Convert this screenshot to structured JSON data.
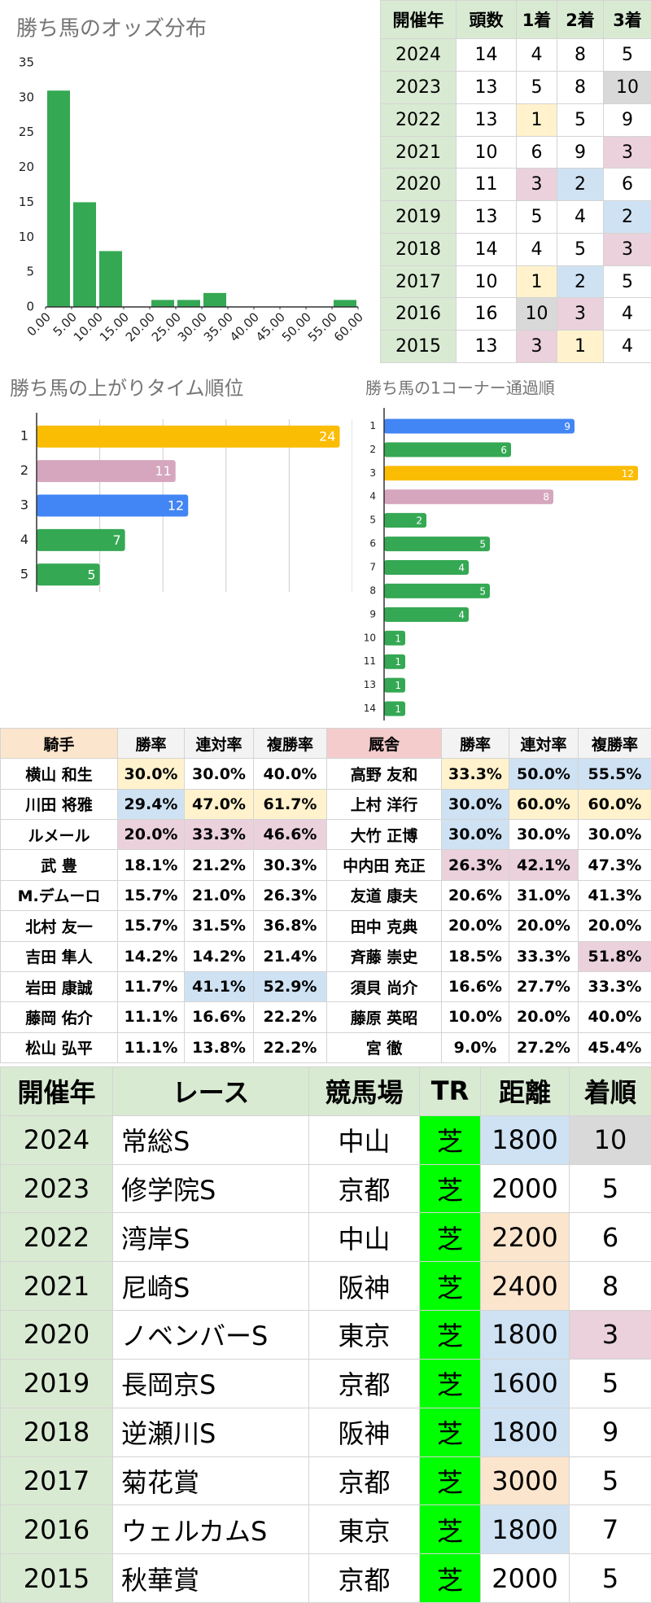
{
  "chart_data": [
    {
      "type": "histogram",
      "title": "勝ち馬のオッズ分布",
      "bins": [
        0,
        5,
        10,
        15,
        20,
        25,
        30,
        35,
        40,
        45,
        50,
        55,
        60
      ],
      "values": [
        31,
        15,
        8,
        0,
        1,
        1,
        2,
        0,
        0,
        0,
        0,
        1
      ],
      "color": "#34a853",
      "xlim": [
        0,
        60
      ],
      "xticks": [
        {
          "value": 0,
          "label": "0.00"
        },
        {
          "value": 5,
          "label": "5.00"
        },
        {
          "value": 10,
          "label": "10.00"
        },
        {
          "value": 15,
          "label": "15.00"
        },
        {
          "value": 20,
          "label": "20.00"
        },
        {
          "value": 25,
          "label": "25.00"
        },
        {
          "value": 30,
          "label": "30.00"
        },
        {
          "value": 35,
          "label": "35.00"
        },
        {
          "value": 40,
          "label": "40.00"
        },
        {
          "value": 45,
          "label": "45.00"
        },
        {
          "value": 50,
          "label": "50.00"
        },
        {
          "value": 55,
          "label": "55.00"
        },
        {
          "value": 60,
          "label": "60.00"
        }
      ],
      "ylim": [
        0,
        35
      ],
      "yticks": [
        0,
        5,
        10,
        15,
        20,
        25,
        30,
        35
      ]
    },
    {
      "type": "barh",
      "title": "勝ち馬の上がりタイム順位",
      "categories": [
        "1",
        "2",
        "3",
        "4",
        "5"
      ],
      "values": [
        24,
        11,
        12,
        7,
        5
      ],
      "colors": [
        "#fbbc04",
        "#d5a6bd",
        "#4285f4",
        "#34a853",
        "#34a853"
      ],
      "xlim": [
        0,
        25
      ],
      "xticks": [
        0,
        5,
        10,
        15,
        20,
        25
      ],
      "grid": true
    },
    {
      "type": "barh",
      "title": "勝ち馬の1コーナー通過順",
      "categories": [
        "1",
        "2",
        "3",
        "4",
        "5",
        "6",
        "7",
        "8",
        "9",
        "10",
        "11",
        "13",
        "14"
      ],
      "values": [
        9,
        6,
        12,
        8,
        2,
        5,
        4,
        5,
        4,
        1,
        1,
        1,
        1
      ],
      "colors": [
        "#4285f4",
        "#34a853",
        "#fbbc04",
        "#d5a6bd",
        "#34a853",
        "#34a853",
        "#34a853",
        "#34a853",
        "#34a853",
        "#34a853",
        "#34a853",
        "#34a853",
        "#34a853"
      ],
      "xlim": [
        0,
        12
      ],
      "grid": false
    }
  ],
  "results_table": {
    "header": [
      "開催年",
      "頭数",
      "1着",
      "2着",
      "3着"
    ],
    "rows": [
      [
        2024,
        14,
        4,
        8,
        5
      ],
      [
        2023,
        13,
        5,
        8,
        10
      ],
      [
        2022,
        13,
        1,
        5,
        9
      ],
      [
        2021,
        10,
        6,
        9,
        3
      ],
      [
        2020,
        11,
        3,
        2,
        6
      ],
      [
        2019,
        13,
        5,
        4,
        2
      ],
      [
        2018,
        14,
        4,
        5,
        3
      ],
      [
        2017,
        10,
        1,
        2,
        5
      ],
      [
        2016,
        16,
        10,
        3,
        4
      ],
      [
        2015,
        13,
        3,
        1,
        4
      ]
    ],
    "cell_colors": [
      [
        null,
        null,
        null,
        null,
        null
      ],
      [
        null,
        null,
        null,
        null,
        "#d9d9d9"
      ],
      [
        null,
        null,
        "#fff2cc",
        null,
        null
      ],
      [
        null,
        null,
        null,
        null,
        "#ead1dc"
      ],
      [
        null,
        null,
        "#ead1dc",
        "#cfe2f3",
        null
      ],
      [
        null,
        null,
        null,
        null,
        "#cfe2f3"
      ],
      [
        null,
        null,
        null,
        null,
        "#ead1dc"
      ],
      [
        null,
        null,
        "#fff2cc",
        "#cfe2f3",
        null
      ],
      [
        null,
        null,
        "#d9d9d9",
        "#ead1dc",
        null
      ],
      [
        null,
        null,
        "#ead1dc",
        "#fff2cc",
        null
      ]
    ]
  },
  "jockey_trainer_table": {
    "header": [
      "騎手",
      "勝率",
      "連対率",
      "複勝率",
      "厩舎",
      "勝率",
      "連対率",
      "複勝率"
    ],
    "rows": [
      [
        "横山 和生",
        "30.0%",
        "30.0%",
        "40.0%",
        "高野 友和",
        "33.3%",
        "50.0%",
        "55.5%"
      ],
      [
        "川田 将雅",
        "29.4%",
        "47.0%",
        "61.7%",
        "上村 洋行",
        "30.0%",
        "60.0%",
        "60.0%"
      ],
      [
        "ルメール",
        "20.0%",
        "33.3%",
        "46.6%",
        "大竹 正博",
        "30.0%",
        "30.0%",
        "30.0%"
      ],
      [
        "武 豊",
        "18.1%",
        "21.2%",
        "30.3%",
        "中内田 充正",
        "26.3%",
        "42.1%",
        "47.3%"
      ],
      [
        "M.デムーロ",
        "15.7%",
        "21.0%",
        "26.3%",
        "友道 康夫",
        "20.6%",
        "31.0%",
        "41.3%"
      ],
      [
        "北村 友一",
        "15.7%",
        "31.5%",
        "36.8%",
        "田中 克典",
        "20.0%",
        "20.0%",
        "20.0%"
      ],
      [
        "吉田 隼人",
        "14.2%",
        "14.2%",
        "21.4%",
        "斉藤 崇史",
        "18.5%",
        "33.3%",
        "51.8%"
      ],
      [
        "岩田 康誠",
        "11.7%",
        "41.1%",
        "52.9%",
        "須貝 尚介",
        "16.6%",
        "27.7%",
        "33.3%"
      ],
      [
        "藤岡 佑介",
        "11.1%",
        "16.6%",
        "22.2%",
        "藤原 英昭",
        "10.0%",
        "20.0%",
        "40.0%"
      ],
      [
        "松山 弘平",
        "11.1%",
        "13.8%",
        "22.2%",
        "宮 徹",
        "9.0%",
        "27.2%",
        "45.4%"
      ]
    ],
    "cell_colors": [
      [
        null,
        "#fff2cc",
        null,
        null,
        null,
        "#fff2cc",
        "#cfe2f3",
        "#cfe2f3"
      ],
      [
        null,
        "#cfe2f3",
        "#fff2cc",
        "#fff2cc",
        null,
        "#cfe2f3",
        "#fff2cc",
        "#fff2cc"
      ],
      [
        null,
        "#ead1dc",
        "#ead1dc",
        "#ead1dc",
        null,
        "#cfe2f3",
        null,
        null
      ],
      [
        null,
        null,
        null,
        null,
        null,
        "#ead1dc",
        "#ead1dc",
        null
      ],
      [
        null,
        null,
        null,
        null,
        null,
        null,
        null,
        null
      ],
      [
        null,
        null,
        null,
        null,
        null,
        null,
        null,
        null
      ],
      [
        null,
        null,
        null,
        null,
        null,
        null,
        null,
        "#ead1dc"
      ],
      [
        null,
        null,
        "#cfe2f3",
        "#cfe2f3",
        null,
        null,
        null,
        null
      ],
      [
        null,
        null,
        null,
        null,
        null,
        null,
        null,
        null
      ],
      [
        null,
        null,
        null,
        null,
        null,
        null,
        null,
        null
      ]
    ]
  },
  "race_table": {
    "header": [
      "開催年",
      "レース",
      "競馬場",
      "TR",
      "距離",
      "着順"
    ],
    "rows": [
      [
        2024,
        "常総S",
        "中山",
        "芝",
        1800,
        10
      ],
      [
        2023,
        "修学院S",
        "京都",
        "芝",
        2000,
        5
      ],
      [
        2022,
        "湾岸S",
        "中山",
        "芝",
        2200,
        6
      ],
      [
        2021,
        "尼崎S",
        "阪神",
        "芝",
        2400,
        8
      ],
      [
        2020,
        "ノベンバーS",
        "東京",
        "芝",
        1800,
        3
      ],
      [
        2019,
        "長岡京S",
        "京都",
        "芝",
        1600,
        5
      ],
      [
        2018,
        "逆瀬川S",
        "阪神",
        "芝",
        1800,
        9
      ],
      [
        2017,
        "菊花賞",
        "京都",
        "芝",
        3000,
        5
      ],
      [
        2016,
        "ウェルカムS",
        "東京",
        "芝",
        1800,
        7
      ],
      [
        2015,
        "秋華賞",
        "京都",
        "芝",
        2000,
        5
      ]
    ],
    "cell_colors": [
      [
        null,
        null,
        null,
        null,
        "#cfe2f3",
        "#d9d9d9"
      ],
      [
        null,
        null,
        null,
        null,
        null,
        null
      ],
      [
        null,
        null,
        null,
        null,
        "#fce5cd",
        null
      ],
      [
        null,
        null,
        null,
        null,
        "#fce5cd",
        null
      ],
      [
        null,
        null,
        null,
        null,
        "#cfe2f3",
        "#ead1dc"
      ],
      [
        null,
        null,
        null,
        null,
        "#cfe2f3",
        null
      ],
      [
        null,
        null,
        null,
        null,
        "#cfe2f3",
        null
      ],
      [
        null,
        null,
        null,
        null,
        "#fce5cd",
        null
      ],
      [
        null,
        null,
        null,
        null,
        "#cfe2f3",
        null
      ],
      [
        null,
        null,
        null,
        null,
        null,
        null
      ]
    ]
  }
}
